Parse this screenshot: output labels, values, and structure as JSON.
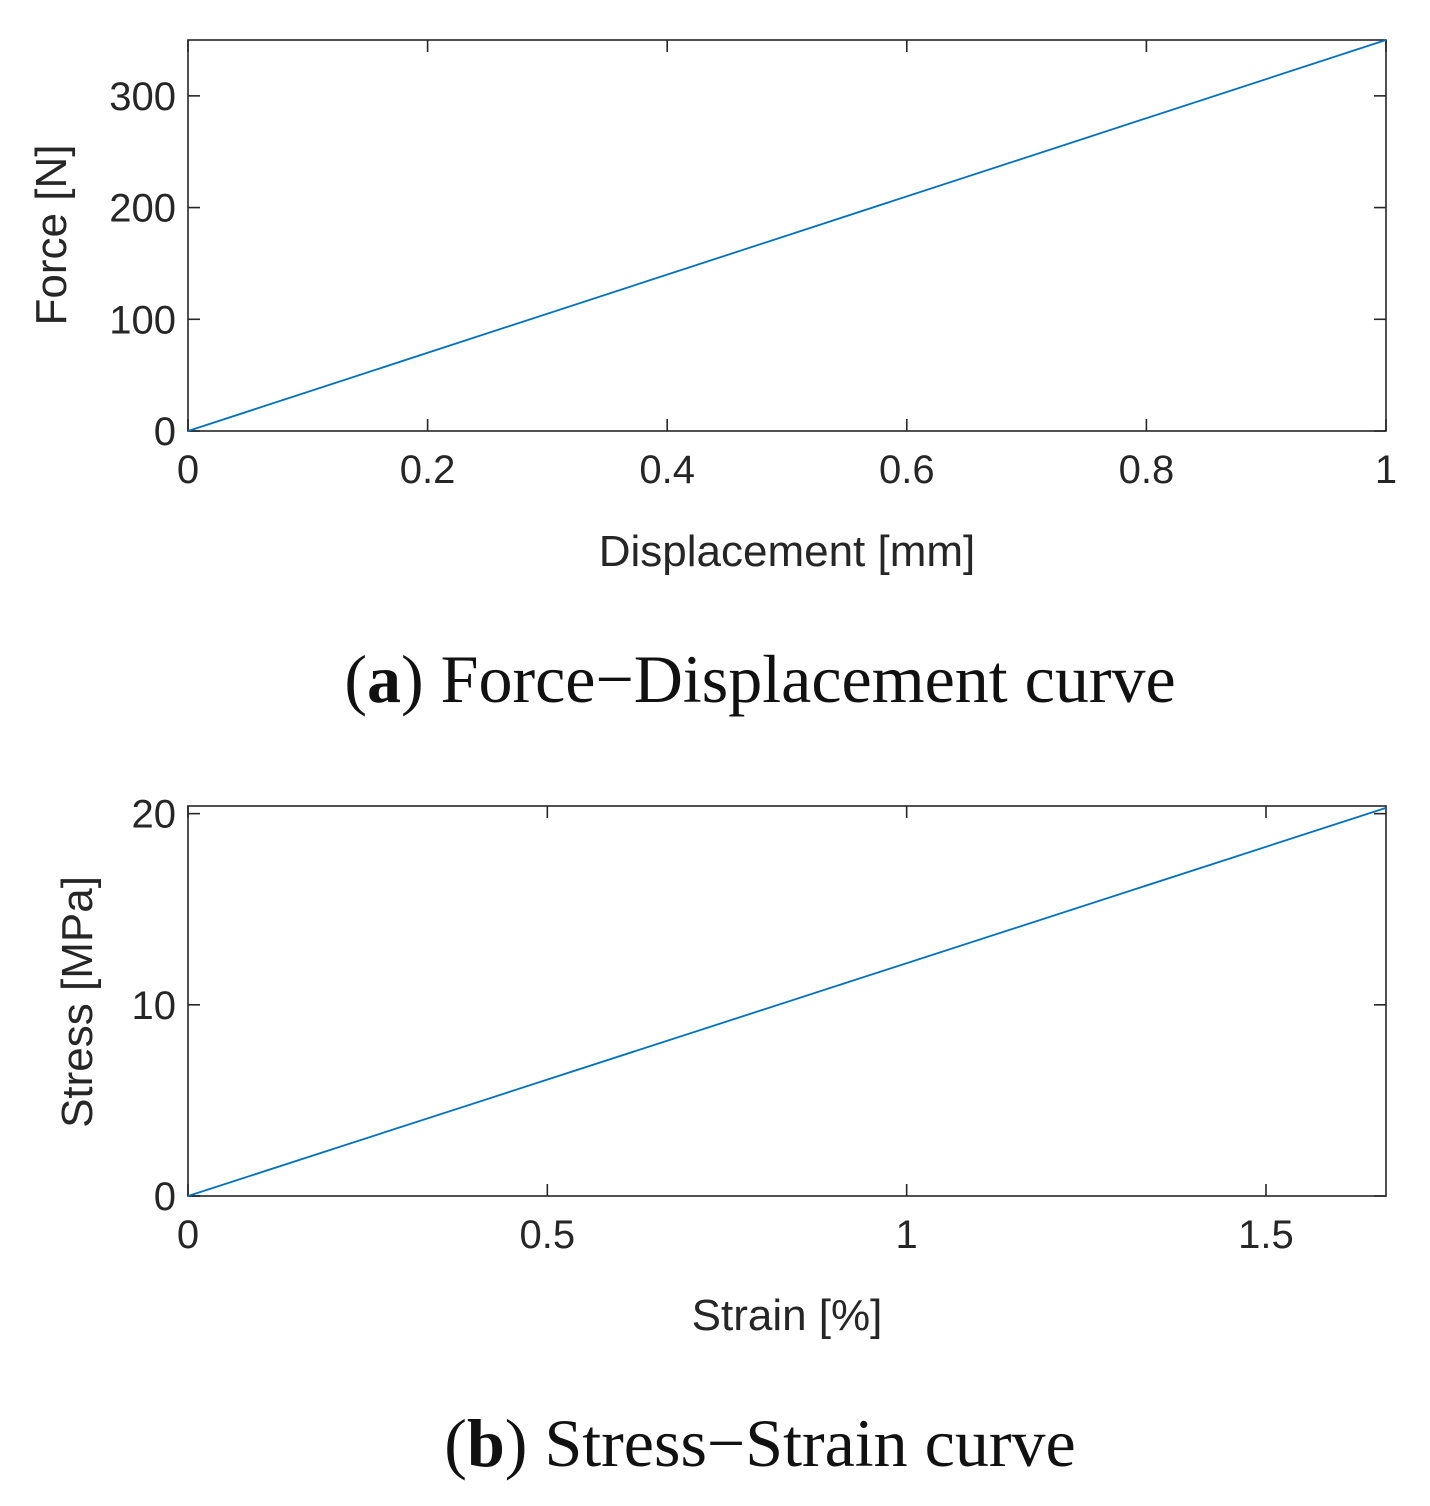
{
  "chart_data": [
    {
      "type": "line",
      "panel_letter": "a",
      "caption": "Force−Displacement curve",
      "xlabel": "Displacement [mm]",
      "ylabel": "Force [N]",
      "xlim": [
        0,
        1
      ],
      "ylim": [
        0,
        350
      ],
      "xticks": [
        0,
        0.2,
        0.4,
        0.6,
        0.8,
        1
      ],
      "xtick_labels": [
        "0",
        "0.2",
        "0.4",
        "0.6",
        "0.8",
        "1"
      ],
      "yticks": [
        0,
        100,
        200,
        300
      ],
      "ytick_labels": [
        "0",
        "100",
        "200",
        "300"
      ],
      "series": [
        {
          "name": "Force",
          "color": "#0072bd",
          "x": [
            0,
            1
          ],
          "y": [
            0,
            350
          ]
        }
      ]
    },
    {
      "type": "line",
      "panel_letter": "b",
      "caption": "Stress−Strain curve",
      "xlabel": "Strain [%]",
      "ylabel": "Stress [MPa]",
      "xlim": [
        0,
        1.667
      ],
      "ylim": [
        0,
        20.4
      ],
      "xticks": [
        0,
        0.5,
        1,
        1.5
      ],
      "xtick_labels": [
        "0",
        "0.5",
        "1",
        "1.5"
      ],
      "yticks": [
        0,
        10,
        20
      ],
      "ytick_labels": [
        "0",
        "10",
        "20"
      ],
      "series": [
        {
          "name": "Stress",
          "color": "#0072bd",
          "x": [
            0,
            1.667
          ],
          "y": [
            0,
            20.3
          ]
        }
      ]
    }
  ]
}
